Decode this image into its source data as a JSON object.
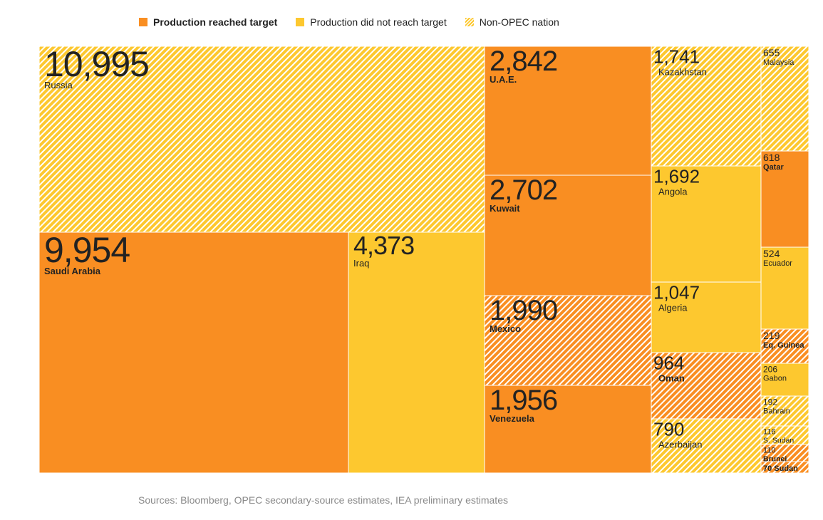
{
  "legend": {
    "reached": "Production reached target",
    "not_reached": "Production did not reach target",
    "non_opec": "Non-OPEC nation"
  },
  "colors": {
    "reached": "#f98e22",
    "not_reached": "#fdc82f",
    "hatch_line": "#ffffff",
    "text": "#222222"
  },
  "chart_data": {
    "type": "treemap",
    "title": "",
    "units": "thousand barrels per day",
    "categories_legend": [
      "Production reached target",
      "Production did not reach target",
      "Non-OPEC nation"
    ],
    "items": [
      {
        "label": "Russia",
        "display": "10,995",
        "value": 10995,
        "status": "not_reached",
        "non_opec": true
      },
      {
        "label": "Saudi Arabia",
        "display": "9,954",
        "value": 9954,
        "status": "reached",
        "non_opec": false
      },
      {
        "label": "Iraq",
        "display": "4,373",
        "value": 4373,
        "status": "not_reached",
        "non_opec": false
      },
      {
        "label": "U.A.E.",
        "display": "2,842",
        "value": 2842,
        "status": "reached",
        "non_opec": false
      },
      {
        "label": "Kuwait",
        "display": "2,702",
        "value": 2702,
        "status": "reached",
        "non_opec": false
      },
      {
        "label": "Mexico",
        "display": "1,990",
        "value": 1990,
        "status": "reached",
        "non_opec": true
      },
      {
        "label": "Venezuela",
        "display": "1,956",
        "value": 1956,
        "status": "reached",
        "non_opec": false
      },
      {
        "label": "Kazakhstan",
        "display": "1,741",
        "value": 1741,
        "status": "not_reached",
        "non_opec": true
      },
      {
        "label": "Angola",
        "display": "1,692",
        "value": 1692,
        "status": "not_reached",
        "non_opec": false
      },
      {
        "label": "Algeria",
        "display": "1,047",
        "value": 1047,
        "status": "not_reached",
        "non_opec": false
      },
      {
        "label": "Oman",
        "display": "964",
        "value": 964,
        "status": "reached",
        "non_opec": true
      },
      {
        "label": "Azerbaijan",
        "display": "790",
        "value": 790,
        "status": "not_reached",
        "non_opec": true
      },
      {
        "label": "Malaysia",
        "display": "655",
        "value": 655,
        "status": "not_reached",
        "non_opec": true
      },
      {
        "label": "Qatar",
        "display": "618",
        "value": 618,
        "status": "reached",
        "non_opec": false
      },
      {
        "label": "Ecuador",
        "display": "524",
        "value": 524,
        "status": "not_reached",
        "non_opec": false
      },
      {
        "label": "Eq. Guinea",
        "display": "219",
        "value": 219,
        "status": "reached",
        "non_opec": true
      },
      {
        "label": "Gabon",
        "display": "206",
        "value": 206,
        "status": "not_reached",
        "non_opec": false
      },
      {
        "label": "Bahrain",
        "display": "192",
        "value": 192,
        "status": "not_reached",
        "non_opec": true
      },
      {
        "label": "S. Sudan",
        "display": "116",
        "value": 116,
        "status": "not_reached",
        "non_opec": true
      },
      {
        "label": "Brunei",
        "display": "110",
        "value": 110,
        "status": "reached",
        "non_opec": true
      },
      {
        "label": "Sudan",
        "display": "70",
        "value": 70,
        "status": "reached",
        "non_opec": true
      }
    ]
  },
  "footer": {
    "source": "Sources: Bloomberg, OPEC secondary-source estimates, IEA preliminary estimates"
  }
}
